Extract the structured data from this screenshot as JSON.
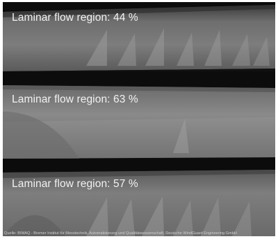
{
  "panels": [
    {
      "label": "Laminar flow region: 44 %",
      "laminar_percent": 44
    },
    {
      "label": "Laminar flow region: 63 %",
      "laminar_percent": 63
    },
    {
      "label": "Laminar flow region: 57 %",
      "laminar_percent": 57
    }
  ],
  "credit": "Quelle: BIMAQ - Bremer Institut für Messtechnik, Automatisierung und Qualitätswissenschaft, Deutsche WindGuard Engineering GmbH"
}
